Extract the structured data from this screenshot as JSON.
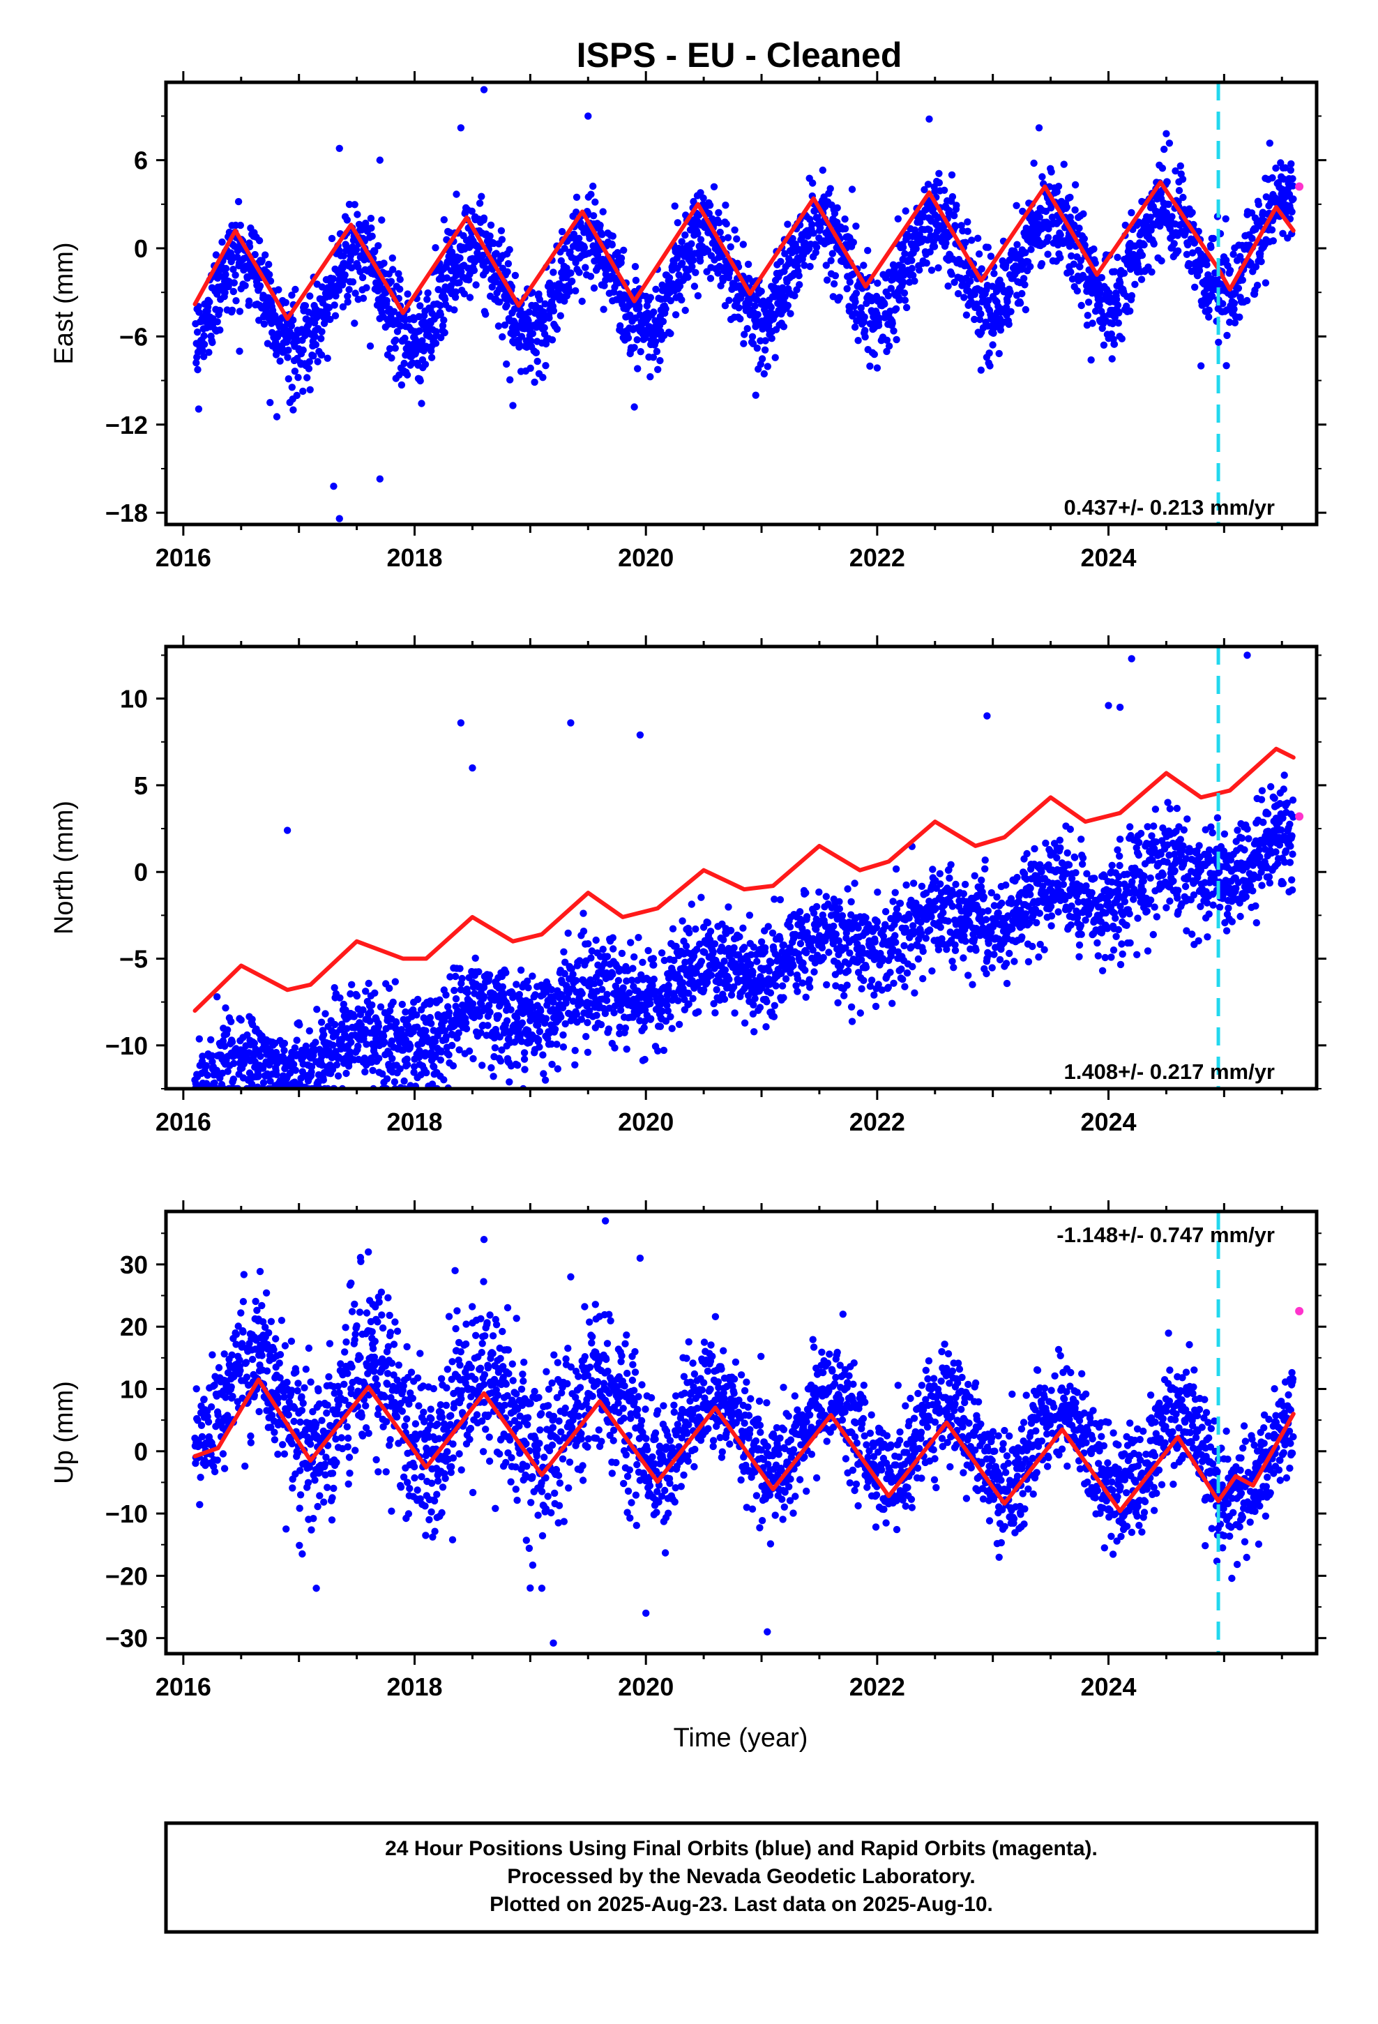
{
  "title": "ISPS  - EU - Cleaned",
  "colors": {
    "final_orbits": "#0000ff",
    "rapid_orbits": "#ff33cc",
    "model_fit": "#ff1a1a",
    "equipment_change": "#22d8ee",
    "frame": "#000000"
  },
  "x_axis": {
    "label": "Time (year)",
    "range": [
      2015.85,
      2025.8
    ],
    "ticks": [
      "2016",
      "2018",
      "2020",
      "2022",
      "2024"
    ]
  },
  "vertical_marker_year": 2024.95,
  "footer": {
    "line1": "24 Hour Positions Using Final Orbits (blue) and Rapid Orbits (magenta).",
    "line2": "Processed by the Nevada Geodetic Laboratory.",
    "line3": "Plotted on 2025-Aug-23. Last data on 2025-Aug-10."
  },
  "chart_data": [
    {
      "type": "scatter",
      "component": "east",
      "ylabel": "East (mm)",
      "ylim": [
        -18.8,
        11.3
      ],
      "yticks": [
        "6",
        "0",
        "-6",
        "-12",
        "-18"
      ],
      "rate_text": "0.437+/- 0.213 mm/yr",
      "rate_position": "bottom-right",
      "start_year": 2016.1,
      "end_year": 2025.6,
      "trend_mm_per_yr": 0.437,
      "offset_mm": -2.2,
      "annual_amplitude_mm": 3.2,
      "annual_peak_year_fraction": 0.5,
      "scatter_sd_mm": 1.6,
      "fit_points": [
        {
          "x": 2016.1,
          "y": -3.8
        },
        {
          "x": 2016.45,
          "y": 1.2
        },
        {
          "x": 2016.9,
          "y": -4.8
        },
        {
          "x": 2017.45,
          "y": 1.6
        },
        {
          "x": 2017.9,
          "y": -4.4
        },
        {
          "x": 2018.45,
          "y": 2.1
        },
        {
          "x": 2018.9,
          "y": -3.9
        },
        {
          "x": 2019.45,
          "y": 2.5
        },
        {
          "x": 2019.9,
          "y": -3.6
        },
        {
          "x": 2020.45,
          "y": 3.0
        },
        {
          "x": 2020.9,
          "y": -3.1
        },
        {
          "x": 2021.45,
          "y": 3.4
        },
        {
          "x": 2021.9,
          "y": -2.6
        },
        {
          "x": 2022.45,
          "y": 3.8
        },
        {
          "x": 2022.9,
          "y": -2.2
        },
        {
          "x": 2023.45,
          "y": 4.2
        },
        {
          "x": 2023.9,
          "y": -1.8
        },
        {
          "x": 2024.45,
          "y": 4.5
        },
        {
          "x": 2024.95,
          "y": -1.4
        },
        {
          "x": 2025.05,
          "y": -2.8
        },
        {
          "x": 2025.45,
          "y": 2.8
        },
        {
          "x": 2025.6,
          "y": 1.2
        }
      ],
      "outliers": [
        {
          "x": 2016.75,
          "y": -10.5
        },
        {
          "x": 2016.95,
          "y": -11.0
        },
        {
          "x": 2017.3,
          "y": -16.2
        },
        {
          "x": 2017.35,
          "y": -18.4
        },
        {
          "x": 2017.7,
          "y": -15.7
        },
        {
          "x": 2017.35,
          "y": 6.8
        },
        {
          "x": 2017.7,
          "y": 6.0
        },
        {
          "x": 2018.6,
          "y": 10.8
        },
        {
          "x": 2018.4,
          "y": 8.2
        },
        {
          "x": 2018.85,
          "y": -10.7
        },
        {
          "x": 2019.5,
          "y": 9.0
        },
        {
          "x": 2019.9,
          "y": -10.8
        },
        {
          "x": 2020.95,
          "y": -10.0
        },
        {
          "x": 2022.45,
          "y": 8.8
        },
        {
          "x": 2023.4,
          "y": 8.2
        },
        {
          "x": 2024.5,
          "y": 7.8
        },
        {
          "x": 2023.85,
          "y": -7.6
        },
        {
          "x": 2024.8,
          "y": -8.0
        }
      ],
      "rapid_points": [
        {
          "x": 2025.65,
          "y": 4.2
        }
      ]
    },
    {
      "type": "scatter",
      "component": "north",
      "ylabel": "North (mm)",
      "ylim": [
        -12.5,
        13.0
      ],
      "yticks": [
        "10",
        "5",
        "0",
        "-5",
        "-10"
      ],
      "rate_text": "1.408+/- 0.217 mm/yr",
      "rate_position": "bottom-right",
      "start_year": 2016.1,
      "end_year": 2025.6,
      "trend_mm_per_yr": 1.408,
      "offset_mm": -6.6,
      "annual_amplitude_mm": 0.8,
      "annual_peak_year_fraction": 0.5,
      "scatter_sd_mm": 1.4,
      "fit_points": [
        {
          "x": 2016.1,
          "y": -8.0
        },
        {
          "x": 2016.5,
          "y": -5.4
        },
        {
          "x": 2016.9,
          "y": -6.8
        },
        {
          "x": 2017.1,
          "y": -6.5
        },
        {
          "x": 2017.5,
          "y": -4.0
        },
        {
          "x": 2017.9,
          "y": -5.0
        },
        {
          "x": 2018.1,
          "y": -5.0
        },
        {
          "x": 2018.5,
          "y": -2.6
        },
        {
          "x": 2018.85,
          "y": -4.0
        },
        {
          "x": 2019.1,
          "y": -3.6
        },
        {
          "x": 2019.5,
          "y": -1.2
        },
        {
          "x": 2019.8,
          "y": -2.6
        },
        {
          "x": 2020.1,
          "y": -2.1
        },
        {
          "x": 2020.5,
          "y": 0.1
        },
        {
          "x": 2020.85,
          "y": -1.0
        },
        {
          "x": 2021.1,
          "y": -0.8
        },
        {
          "x": 2021.5,
          "y": 1.5
        },
        {
          "x": 2021.85,
          "y": 0.1
        },
        {
          "x": 2022.1,
          "y": 0.6
        },
        {
          "x": 2022.5,
          "y": 2.9
        },
        {
          "x": 2022.85,
          "y": 1.5
        },
        {
          "x": 2023.1,
          "y": 2.0
        },
        {
          "x": 2023.5,
          "y": 4.3
        },
        {
          "x": 2023.8,
          "y": 2.9
        },
        {
          "x": 2024.1,
          "y": 3.4
        },
        {
          "x": 2024.5,
          "y": 5.7
        },
        {
          "x": 2024.8,
          "y": 4.3
        },
        {
          "x": 2025.05,
          "y": 4.7
        },
        {
          "x": 2025.45,
          "y": 7.1
        },
        {
          "x": 2025.6,
          "y": 6.6
        }
      ],
      "outliers": [
        {
          "x": 2016.1,
          "y": -12.0
        },
        {
          "x": 2016.2,
          "y": -12.2
        },
        {
          "x": 2016.9,
          "y": 2.4
        },
        {
          "x": 2018.4,
          "y": 8.6
        },
        {
          "x": 2018.5,
          "y": 6.0
        },
        {
          "x": 2018.0,
          "y": -10.8
        },
        {
          "x": 2018.95,
          "y": -10.8
        },
        {
          "x": 2019.35,
          "y": 8.6
        },
        {
          "x": 2019.95,
          "y": 7.9
        },
        {
          "x": 2020.5,
          "y": -6.8
        },
        {
          "x": 2022.95,
          "y": 9.0
        },
        {
          "x": 2024.0,
          "y": 9.6
        },
        {
          "x": 2024.2,
          "y": 12.3
        },
        {
          "x": 2024.1,
          "y": 9.5
        },
        {
          "x": 2025.2,
          "y": 12.5
        },
        {
          "x": 2025.1,
          "y": 0.2
        }
      ],
      "rapid_points": [
        {
          "x": 2025.65,
          "y": 3.2
        }
      ]
    },
    {
      "type": "scatter",
      "component": "up",
      "ylabel": "Up (mm)",
      "ylim": [
        -32.5,
        38.5
      ],
      "yticks": [
        "30",
        "20",
        "10",
        "0",
        "-10",
        "-20",
        "-30"
      ],
      "rate_text": "-1.148+/- 0.747 mm/yr",
      "rate_position": "top-right",
      "start_year": 2016.1,
      "end_year": 2025.6,
      "trend_mm_per_yr": -1.148,
      "offset_mm": 4.5,
      "annual_amplitude_mm": 6.5,
      "annual_peak_year_fraction": 0.6,
      "scatter_sd_mm": 4.5,
      "fit_points": [
        {
          "x": 2016.1,
          "y": -0.8
        },
        {
          "x": 2016.3,
          "y": 0.5
        },
        {
          "x": 2016.65,
          "y": 11.5
        },
        {
          "x": 2017.1,
          "y": -1.5
        },
        {
          "x": 2017.6,
          "y": 10.3
        },
        {
          "x": 2018.1,
          "y": -2.6
        },
        {
          "x": 2018.6,
          "y": 9.3
        },
        {
          "x": 2019.1,
          "y": -3.8
        },
        {
          "x": 2019.6,
          "y": 8.0
        },
        {
          "x": 2020.1,
          "y": -4.9
        },
        {
          "x": 2020.6,
          "y": 7.0
        },
        {
          "x": 2021.1,
          "y": -6.1
        },
        {
          "x": 2021.6,
          "y": 5.8
        },
        {
          "x": 2022.1,
          "y": -7.2
        },
        {
          "x": 2022.6,
          "y": 4.6
        },
        {
          "x": 2023.1,
          "y": -8.4
        },
        {
          "x": 2023.6,
          "y": 3.5
        },
        {
          "x": 2024.1,
          "y": -9.6
        },
        {
          "x": 2024.6,
          "y": 2.3
        },
        {
          "x": 2024.95,
          "y": -8.0
        },
        {
          "x": 2025.1,
          "y": -4.0
        },
        {
          "x": 2025.25,
          "y": -5.5
        },
        {
          "x": 2025.6,
          "y": 6.0
        }
      ],
      "outliers": [
        {
          "x": 2017.15,
          "y": -22.0
        },
        {
          "x": 2017.6,
          "y": 32.0
        },
        {
          "x": 2018.6,
          "y": 34.0
        },
        {
          "x": 2019.1,
          "y": -22.0
        },
        {
          "x": 2019.2,
          "y": -30.8
        },
        {
          "x": 2019.65,
          "y": 37.0
        },
        {
          "x": 2019.95,
          "y": 31.0
        },
        {
          "x": 2020.0,
          "y": -26.0
        },
        {
          "x": 2021.05,
          "y": -29.0
        },
        {
          "x": 2019.35,
          "y": 28.0
        },
        {
          "x": 2018.35,
          "y": 29.0
        },
        {
          "x": 2017.45,
          "y": 27.0
        }
      ],
      "rapid_points": [
        {
          "x": 2025.65,
          "y": 22.5
        }
      ]
    }
  ]
}
